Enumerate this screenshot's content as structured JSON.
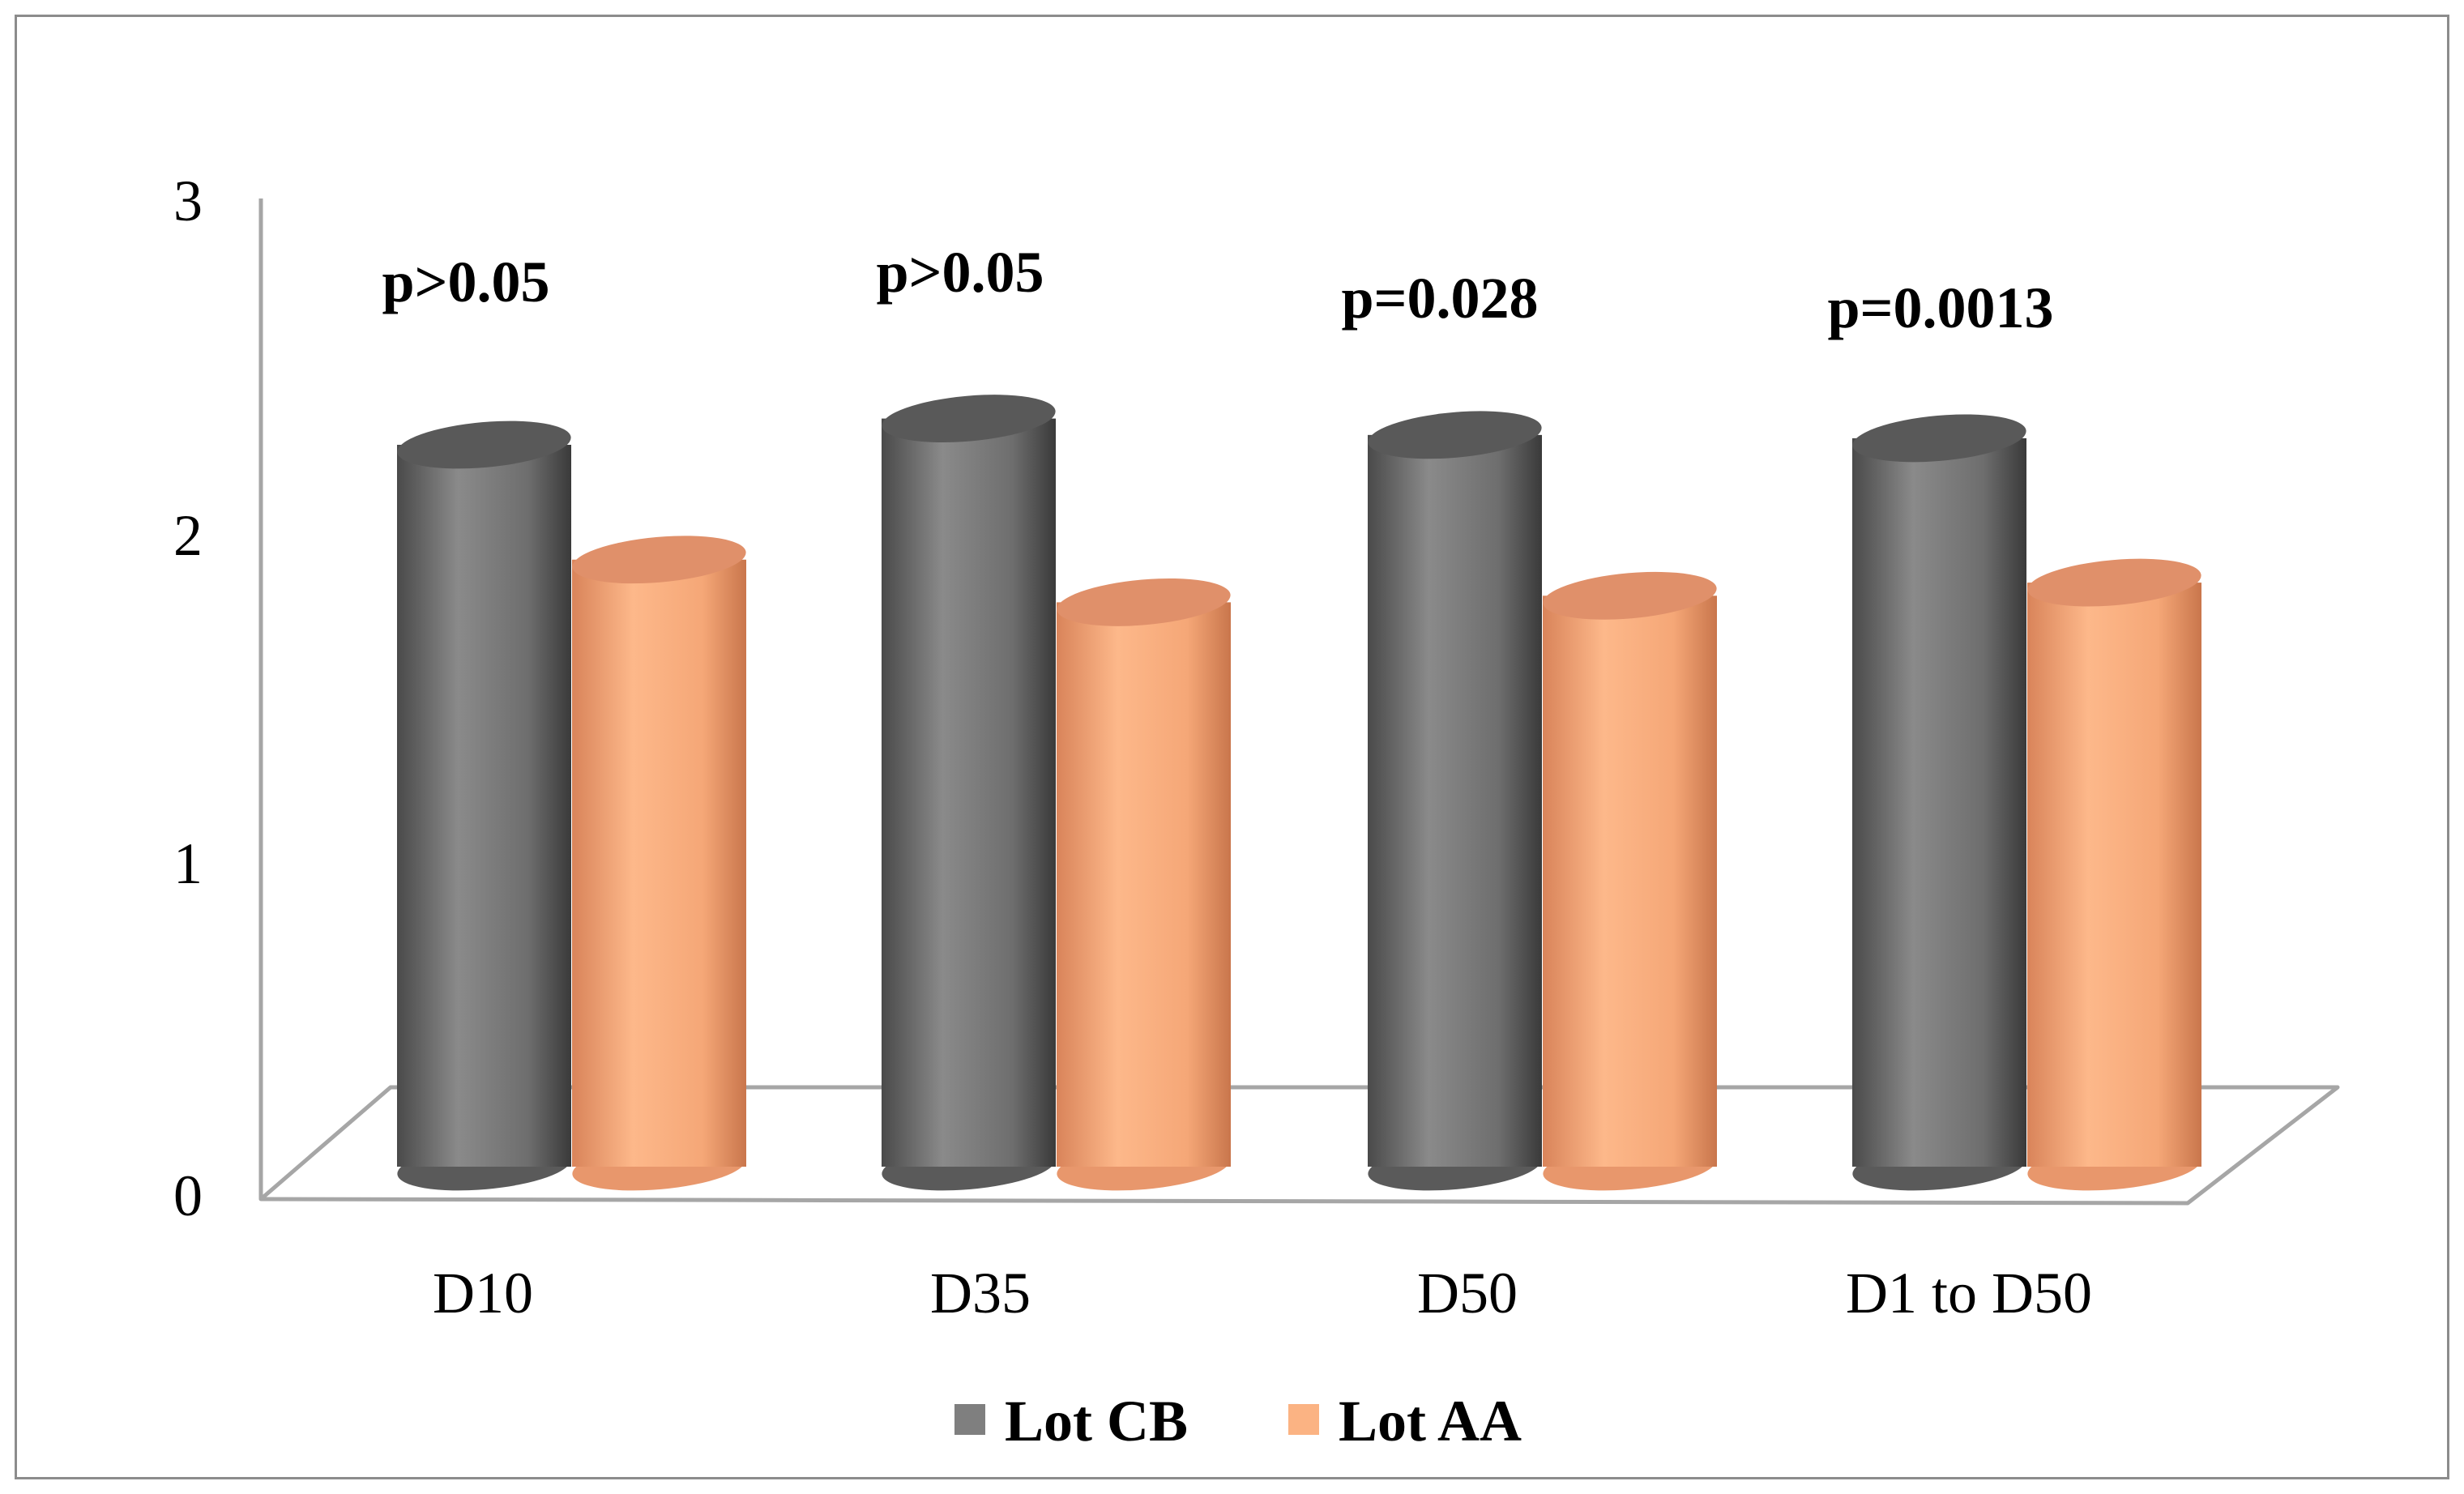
{
  "chart_data": {
    "type": "bar",
    "style": "3d-cylinder",
    "title": "",
    "xlabel": "",
    "ylabel": "",
    "ylim": [
      0,
      3
    ],
    "yticks": [
      "0",
      "1",
      "2",
      "3"
    ],
    "grid": false,
    "categories": [
      "D10",
      "D35",
      "D50",
      "D1 to D50"
    ],
    "series": [
      {
        "name": "Lot CB",
        "color": "#7f7f7f",
        "values": [
          2.2,
          2.28,
          2.23,
          2.22
        ]
      },
      {
        "name": "Lot AA",
        "color": "#fbb383",
        "values": [
          1.85,
          1.72,
          1.74,
          1.78
        ]
      }
    ],
    "annotations": [
      "p>0.05",
      "p>0.05",
      "p=0.028",
      "p=0.0013"
    ],
    "legend": {
      "position": "bottom",
      "entries": [
        "Lot CB",
        "Lot AA"
      ]
    }
  }
}
